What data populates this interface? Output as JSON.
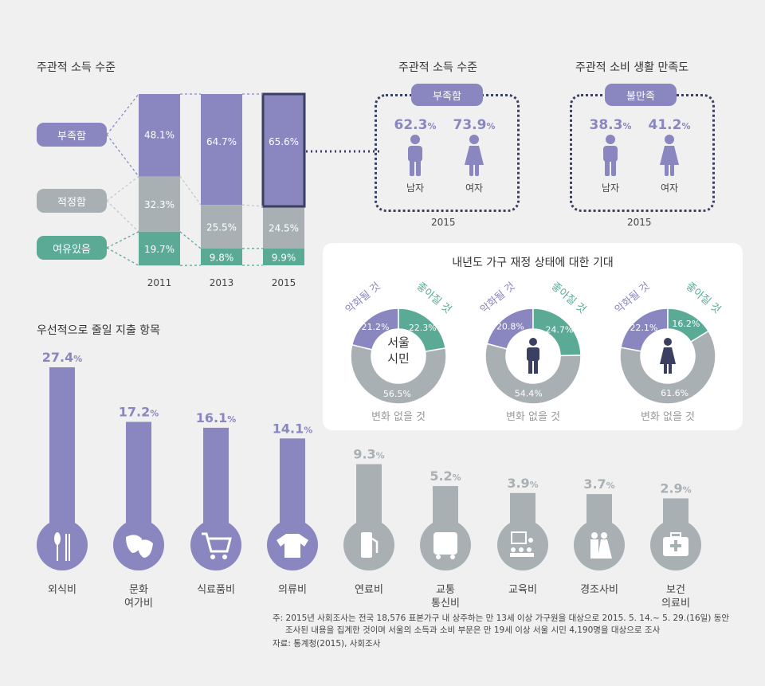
{
  "income_chart": {
    "title": "주관적 소득 수준",
    "legend": [
      {
        "label": "부족함",
        "color": "#8a86bf"
      },
      {
        "label": "적정함",
        "color": "#a9b0b4"
      },
      {
        "label": "여유있음",
        "color": "#5aaa96"
      }
    ]
  },
  "gender_income": {
    "title": "주관적 소득 수준",
    "badge": "부족함",
    "male_pct": "62.3",
    "female_pct": "73.9",
    "male_label": "남자",
    "female_label": "여자",
    "year": "2015"
  },
  "gender_consumption": {
    "title": "주관적 소비 생활 만족도",
    "badge": "불만족",
    "male_pct": "38.3",
    "female_pct": "41.2",
    "male_label": "남자",
    "female_label": "여자",
    "year": "2015"
  },
  "finance_card": {
    "title": "내년도 가구 재정 상태에 대한 기대",
    "center_label_line1": "서울",
    "center_label_line2": "시민",
    "worse_label": "악화될 것",
    "better_label": "좋아질 것",
    "nochange_label": "변화 없을 것"
  },
  "spending": {
    "title": "우선적으로 줄일 지출 항목"
  },
  "notes": {
    "note1": "주: 2015년 사회조사는 전국 18,576 표본가구 내 상주하는 만 13세 이상 가구원을 대상으로 2015. 5. 14.~ 5. 29.(16일) 동안",
    "note2": "조사된 내용을 집계한 것이며 서울의 소득과 소비 부문은 만 19세 이상 서울 시민 4,190명을 대상으로 조사",
    "source": "자료: 통계청(2015), 사회조사"
  },
  "chart_data": [
    {
      "type": "bar",
      "stacked": true,
      "title": "주관적 소득 수준",
      "categories": [
        "2011",
        "2013",
        "2015"
      ],
      "series": [
        {
          "name": "부족함",
          "values": [
            48.1,
            64.7,
            65.6
          ],
          "color": "#8a86bf"
        },
        {
          "name": "적정함",
          "values": [
            32.3,
            25.5,
            24.5
          ],
          "color": "#a9b0b4"
        },
        {
          "name": "여유있음",
          "values": [
            19.7,
            9.8,
            9.9
          ],
          "color": "#5aaa96"
        }
      ],
      "unit": "%"
    },
    {
      "type": "pie",
      "donut": true,
      "group": "서울 시민",
      "slices": [
        {
          "label": "악화될 것",
          "value": 21.2,
          "color": "#8a86bf"
        },
        {
          "label": "좋아질 것",
          "value": 22.3,
          "color": "#5aaa96"
        },
        {
          "label": "변화 없을 것",
          "value": 56.5,
          "color": "#a9b0b4"
        }
      ]
    },
    {
      "type": "pie",
      "donut": true,
      "group": "남자",
      "slices": [
        {
          "label": "악화될 것",
          "value": 20.8,
          "color": "#8a86bf"
        },
        {
          "label": "좋아질 것",
          "value": 24.7,
          "color": "#5aaa96"
        },
        {
          "label": "변화 없을 것",
          "value": 54.4,
          "color": "#a9b0b4"
        }
      ]
    },
    {
      "type": "pie",
      "donut": true,
      "group": "여자",
      "slices": [
        {
          "label": "악화될 것",
          "value": 22.1,
          "color": "#8a86bf"
        },
        {
          "label": "좋아질 것",
          "value": 16.2,
          "color": "#5aaa96"
        },
        {
          "label": "변화 없을 것",
          "value": 61.6,
          "color": "#a9b0b4"
        }
      ]
    },
    {
      "type": "bar",
      "title": "우선적으로 줄일 지출 항목",
      "categories": [
        "외식비",
        "문화 여가비",
        "식료품비",
        "의류비",
        "연료비",
        "교통 통신비",
        "교육비",
        "경조사비",
        "보건 의료비"
      ],
      "category_lines": [
        [
          "외식비"
        ],
        [
          "문화",
          "여가비"
        ],
        [
          "식료품비"
        ],
        [
          "의류비"
        ],
        [
          "연료비"
        ],
        [
          "교통",
          "통신비"
        ],
        [
          "교육비"
        ],
        [
          "경조사비"
        ],
        [
          "보건",
          "의료비"
        ]
      ],
      "values": [
        27.4,
        17.2,
        16.1,
        14.1,
        9.3,
        5.2,
        3.9,
        3.7,
        2.9
      ],
      "colors": [
        "#8a86bf",
        "#8a86bf",
        "#8a86bf",
        "#8a86bf",
        "#a9b0b4",
        "#a9b0b4",
        "#a9b0b4",
        "#a9b0b4",
        "#a9b0b4"
      ],
      "icons": [
        "utensils-icon",
        "theater-masks-icon",
        "shopping-cart-icon",
        "shirt-icon",
        "fuel-pump-icon",
        "bus-icon",
        "classroom-icon",
        "wedding-couple-icon",
        "first-aid-kit-icon"
      ],
      "unit": "%"
    }
  ]
}
